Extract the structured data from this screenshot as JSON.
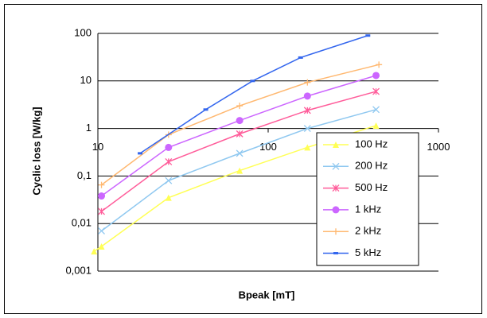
{
  "chart_data": {
    "type": "line",
    "x_label": "Bpeak [mT]",
    "y_label": "Cyclic loss [W/kg]",
    "xscale": "log",
    "yscale": "log",
    "xlim": [
      10,
      1000
    ],
    "ylim": [
      0.001,
      100
    ],
    "xticks": [
      10,
      100,
      1000
    ],
    "yticks": [
      100,
      10,
      1,
      {
        "value": 0.1,
        "label": "0,1"
      },
      {
        "value": 0.01,
        "label": "0,01"
      },
      {
        "value": 0.001,
        "label": "0,001"
      }
    ],
    "grid": true,
    "legend": "lower right",
    "series": [
      {
        "name": "100 Hz",
        "color": "#ffff55",
        "marker": "triangle",
        "x": [
          9.5,
          10.5,
          26,
          68,
          170,
          430
        ],
        "values": [
          0.0026,
          0.0033,
          0.035,
          0.13,
          0.4,
          1.15
        ]
      },
      {
        "name": "200 Hz",
        "color": "#8fc8f0",
        "marker": "x",
        "x": [
          10.5,
          26,
          68,
          170,
          430
        ],
        "values": [
          0.007,
          0.08,
          0.3,
          1.0,
          2.5
        ]
      },
      {
        "name": "500 Hz",
        "color": "#ff5c9a",
        "marker": "star",
        "x": [
          10.5,
          26,
          68,
          170,
          430
        ],
        "values": [
          0.018,
          0.2,
          0.77,
          2.4,
          6
        ]
      },
      {
        "name": "1 kHz",
        "color": "#cc66ff",
        "marker": "circle",
        "x": [
          10.5,
          26,
          68,
          170,
          430
        ],
        "values": [
          0.038,
          0.4,
          1.47,
          4.8,
          13
        ]
      },
      {
        "name": "2 kHz",
        "color": "#ffb870",
        "marker": "plus",
        "x": [
          10.5,
          26,
          68,
          170,
          447
        ],
        "values": [
          0.065,
          0.74,
          3.0,
          9.3,
          22
        ]
      },
      {
        "name": "5 kHz",
        "color": "#3366ee",
        "marker": "dash",
        "x": [
          17.7,
          43,
          81,
          155,
          385
        ],
        "values": [
          0.3,
          2.5,
          10,
          31,
          90
        ]
      }
    ]
  }
}
